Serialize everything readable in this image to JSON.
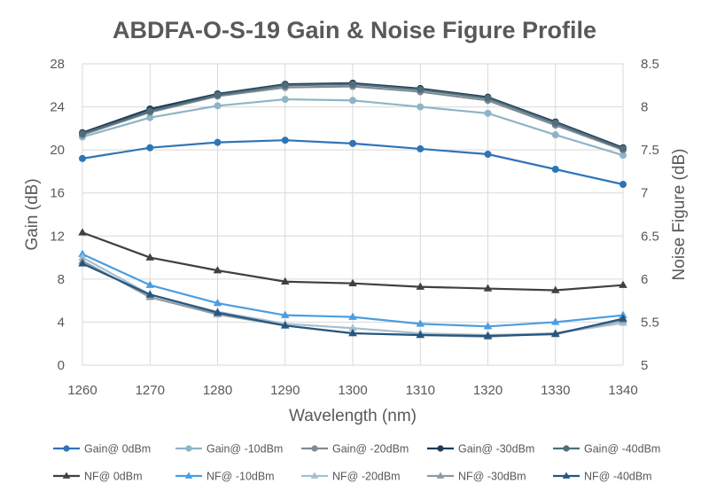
{
  "colors": {
    "text": "#595959",
    "grid": "#d9d9d9",
    "plot_border": "#d9d9d9"
  },
  "chart_data": {
    "type": "line",
    "title": "ABDFA-O-S-19 Gain & Noise Figure Profile",
    "xlabel": "Wavelength (nm)",
    "ylabel": "Gain (dB)",
    "y2label": "Noise Figure (dB)",
    "x": [
      1260,
      1270,
      1280,
      1290,
      1300,
      1310,
      1320,
      1330,
      1340
    ],
    "xlim": [
      1260,
      1340
    ],
    "xticks": [
      "1260",
      "1270",
      "1280",
      "1290",
      "1300",
      "1310",
      "1320",
      "1330",
      "1340"
    ],
    "ylim": [
      0,
      28
    ],
    "yticks": [
      "0",
      "4",
      "8",
      "12",
      "16",
      "20",
      "24",
      "28"
    ],
    "y2lim": [
      5,
      8.5
    ],
    "y2ticks": [
      "5",
      "5.5",
      "6",
      "6.5",
      "7",
      "7.5",
      "8",
      "8.5"
    ],
    "grid": "vertical and horizontal",
    "legend_position": "bottom",
    "series": [
      {
        "name": "Gain@ 0dBm",
        "axis": "left",
        "marker": "circle",
        "color": "#2e75b6",
        "values": [
          19.2,
          20.2,
          20.7,
          20.9,
          20.6,
          20.1,
          19.6,
          18.2,
          16.8
        ]
      },
      {
        "name": "Gain@ -10dBm",
        "axis": "left",
        "marker": "circle",
        "color": "#8fb4c7",
        "values": [
          21.2,
          23.0,
          24.1,
          24.7,
          24.6,
          24.0,
          23.4,
          21.4,
          19.5
        ]
      },
      {
        "name": "Gain@ -20dBm",
        "axis": "left",
        "marker": "circle",
        "color": "#7f8c95",
        "values": [
          21.4,
          23.5,
          25.0,
          25.8,
          25.9,
          25.4,
          24.6,
          22.3,
          20.0
        ]
      },
      {
        "name": "Gain@ -30dBm",
        "axis": "left",
        "marker": "circle",
        "color": "#1f3b57",
        "values": [
          21.6,
          23.8,
          25.2,
          26.1,
          26.2,
          25.7,
          24.9,
          22.6,
          20.2
        ]
      },
      {
        "name": "Gain@ -40dBm",
        "axis": "left",
        "marker": "circle",
        "color": "#4f6e7a",
        "values": [
          21.5,
          23.6,
          25.1,
          26.0,
          26.1,
          25.6,
          24.8,
          22.5,
          20.1
        ]
      },
      {
        "name": "NF@ 0dBm",
        "axis": "right",
        "marker": "triangle",
        "color": "#404040",
        "values": [
          6.54,
          6.25,
          6.1,
          5.97,
          5.95,
          5.91,
          5.89,
          5.87,
          5.93
        ]
      },
      {
        "name": "NF@ -10dBm",
        "axis": "right",
        "marker": "triangle",
        "color": "#4a9ee0",
        "values": [
          6.29,
          5.93,
          5.72,
          5.58,
          5.56,
          5.48,
          5.45,
          5.5,
          5.58
        ]
      },
      {
        "name": "NF@ -20dBm",
        "axis": "right",
        "marker": "triangle",
        "color": "#a6bfd0",
        "values": [
          6.25,
          5.82,
          5.62,
          5.48,
          5.43,
          5.37,
          5.35,
          5.37,
          5.49
        ]
      },
      {
        "name": "NF@ -30dBm",
        "axis": "right",
        "marker": "triangle",
        "color": "#8c9aa3",
        "values": [
          6.21,
          5.79,
          5.59,
          5.46,
          5.37,
          5.35,
          5.33,
          5.37,
          5.52
        ]
      },
      {
        "name": "NF@ -40dBm",
        "axis": "right",
        "marker": "triangle",
        "color": "#26567f",
        "values": [
          6.18,
          5.82,
          5.61,
          5.46,
          5.37,
          5.35,
          5.34,
          5.36,
          5.54
        ]
      }
    ]
  }
}
